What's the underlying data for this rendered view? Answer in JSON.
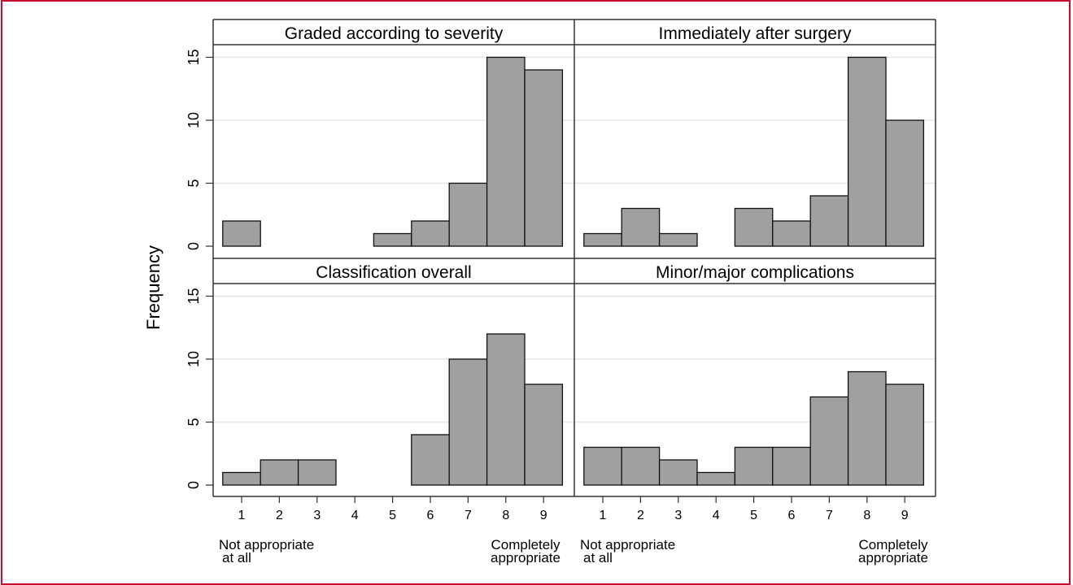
{
  "colors": {
    "frame_border": "#c8102e",
    "bar_fill": "#a0a0a0",
    "bar_stroke": "#111111",
    "grid": "#e6e6e6",
    "panel_rule": "#333333"
  },
  "y_axis_label": "Frequency",
  "x_end_labels": {
    "left": [
      "Not appropriate",
      "at all"
    ],
    "right": [
      "Completely",
      "appropriate"
    ]
  },
  "chart_data": [
    {
      "type": "bar",
      "title": "Graded according to severity",
      "categories": [
        1,
        2,
        3,
        4,
        5,
        6,
        7,
        8,
        9
      ],
      "values": [
        2,
        0,
        0,
        0,
        1,
        2,
        5,
        15,
        14
      ],
      "ylim": [
        0,
        15
      ],
      "yticks": [
        0,
        5,
        10,
        15
      ],
      "grid": true
    },
    {
      "type": "bar",
      "title": "Immediately after surgery",
      "categories": [
        1,
        2,
        3,
        4,
        5,
        6,
        7,
        8,
        9
      ],
      "values": [
        1,
        3,
        1,
        0,
        3,
        2,
        4,
        15,
        10
      ],
      "ylim": [
        0,
        15
      ],
      "yticks": [
        0,
        5,
        10,
        15
      ],
      "grid": true
    },
    {
      "type": "bar",
      "title": "Classification overall",
      "categories": [
        1,
        2,
        3,
        4,
        5,
        6,
        7,
        8,
        9
      ],
      "values": [
        1,
        2,
        2,
        0,
        0,
        4,
        10,
        12,
        8
      ],
      "ylim": [
        0,
        15
      ],
      "yticks": [
        0,
        5,
        10,
        15
      ],
      "grid": true
    },
    {
      "type": "bar",
      "title": "Minor/major complications",
      "categories": [
        1,
        2,
        3,
        4,
        5,
        6,
        7,
        8,
        9
      ],
      "values": [
        3,
        3,
        2,
        1,
        3,
        3,
        7,
        9,
        8
      ],
      "ylim": [
        0,
        15
      ],
      "yticks": [
        0,
        5,
        10,
        15
      ],
      "grid": true
    }
  ]
}
